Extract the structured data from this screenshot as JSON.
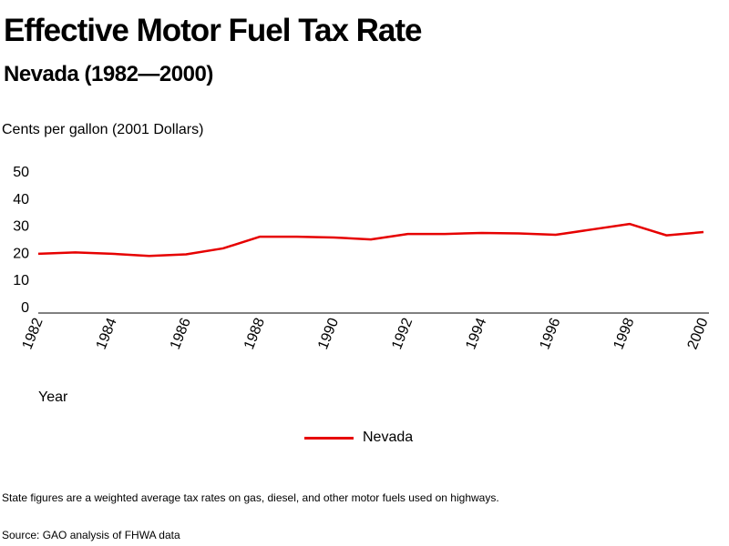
{
  "header": {
    "title": "Effective Motor Fuel Tax Rate",
    "subtitle": "Nevada (1982—2000)"
  },
  "footer": {
    "note": "State figures are a weighted average tax rates on gas, diesel, and other motor fuels used on highways.",
    "source": "Source: GAO analysis of FHWA data"
  },
  "chart_data": {
    "type": "line",
    "title": "Effective Motor Fuel Tax Rate",
    "subtitle": "Nevada (1982—2000)",
    "xlabel": "Year",
    "ylabel": "Cents per gallon (2001 Dollars)",
    "x": [
      1982,
      1983,
      1984,
      1985,
      1986,
      1987,
      1988,
      1989,
      1990,
      1991,
      1992,
      1993,
      1994,
      1995,
      1996,
      1997,
      1998,
      1999,
      2000
    ],
    "x_tick_labels": [
      "1982",
      "1984",
      "1986",
      "1988",
      "1990",
      "1992",
      "1994",
      "1996",
      "1998",
      "2000"
    ],
    "y_tick_labels": [
      "0",
      "10",
      "20",
      "30",
      "40",
      "50"
    ],
    "xlim": [
      1982,
      2000
    ],
    "ylim": [
      0,
      50
    ],
    "grid": false,
    "legend_position": "bottom-center",
    "series": [
      {
        "name": "Nevada",
        "color": "#e60000",
        "values": [
          19.5,
          20,
          19.5,
          18.7,
          19.3,
          21.5,
          25.8,
          25.8,
          25.5,
          24.8,
          26.8,
          26.8,
          27.2,
          27,
          26.5,
          28.5,
          30.5,
          26.3,
          27.5
        ]
      }
    ]
  }
}
